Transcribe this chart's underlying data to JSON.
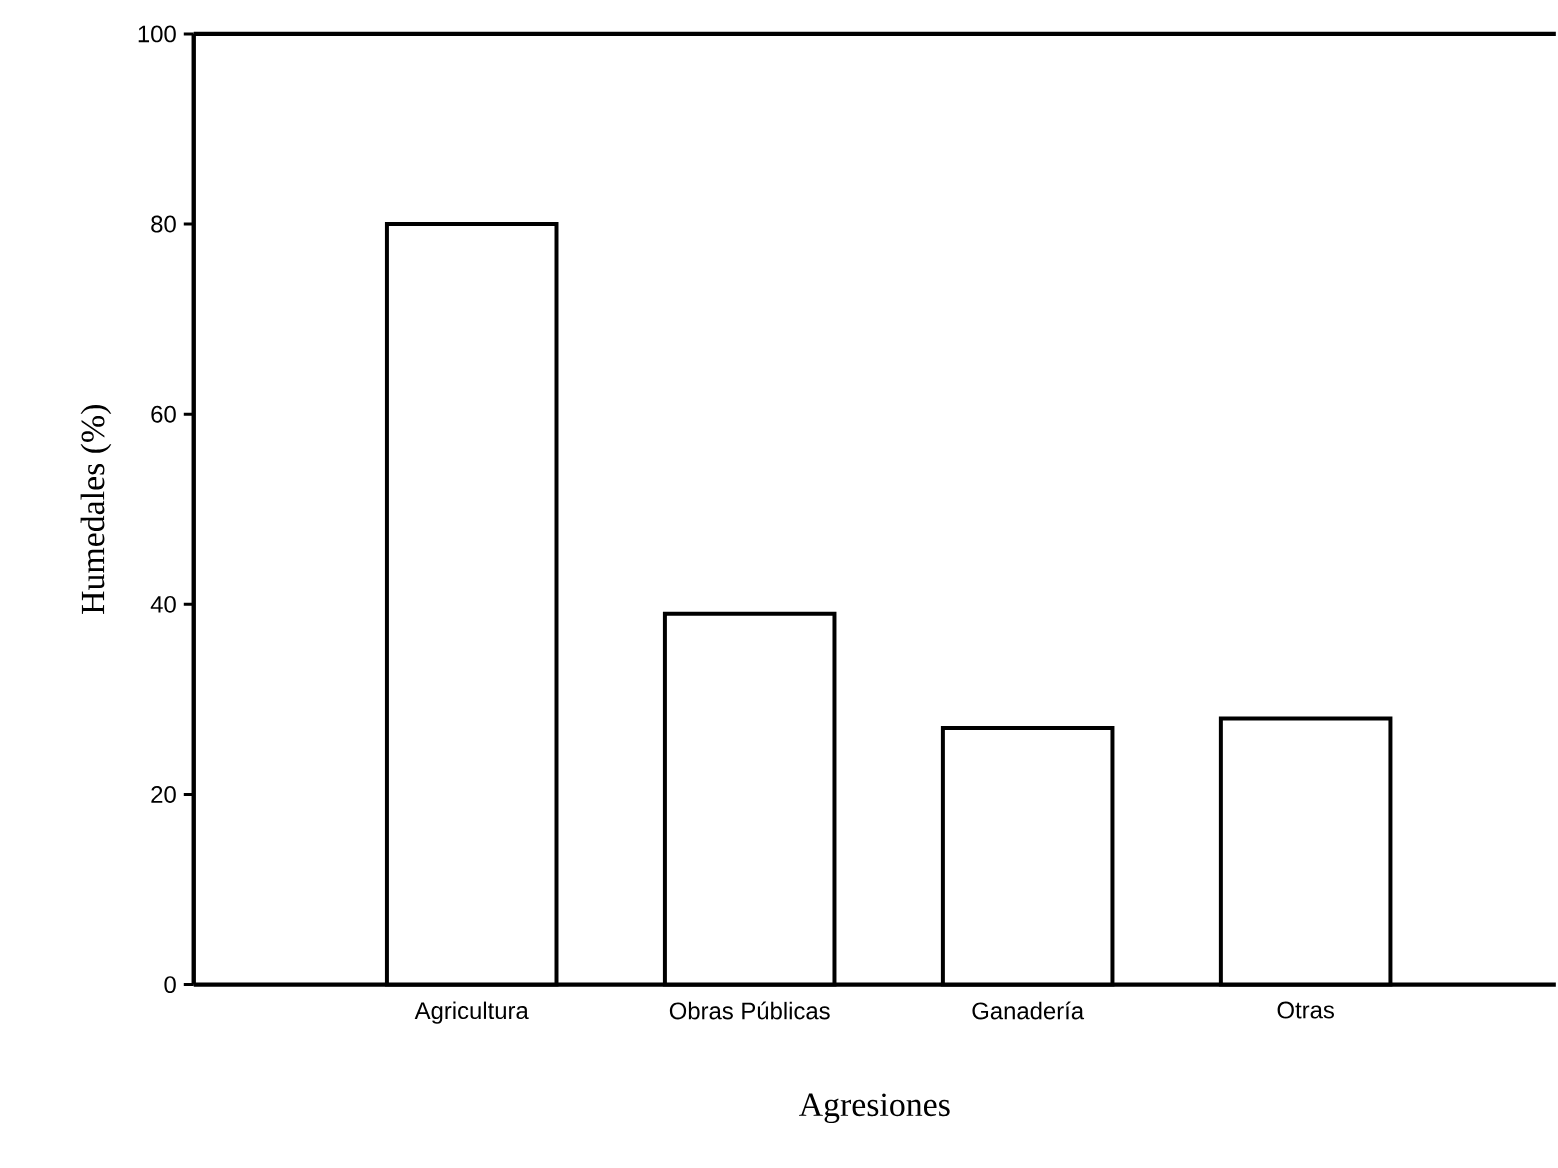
{
  "chart_data": {
    "type": "bar",
    "categories": [
      "Agricultura",
      "Obras Públicas",
      "Ganadería",
      "Otras"
    ],
    "values": [
      80,
      39,
      27,
      28
    ],
    "color": "#ffffff",
    "xlabel": "Agresiones",
    "ylabel": "Humedales (%)",
    "ylim": [
      0,
      100
    ],
    "yticks": [
      0,
      20,
      40,
      60,
      80,
      100
    ]
  }
}
